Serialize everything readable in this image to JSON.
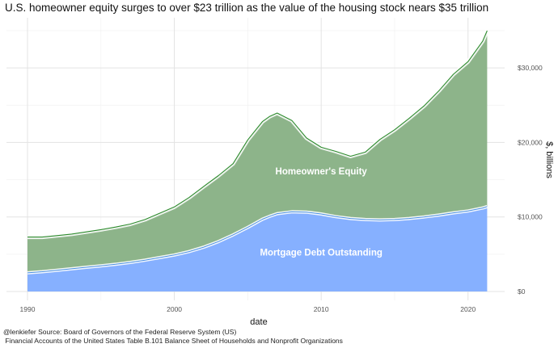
{
  "chart_data": {
    "type": "area",
    "title": "U.S. homeowner equity surges to over $23 trillion as the value of the housing stock nears $35 trillion",
    "xlabel": "date",
    "ylabel": "$, billions",
    "xlim": [
      1990,
      2021.5
    ],
    "ylim": [
      0,
      35000
    ],
    "x_ticks": [
      1990,
      2000,
      2010,
      2020
    ],
    "y_ticks": [
      0,
      10000,
      20000,
      30000
    ],
    "y_tick_labels": [
      "$0",
      "$10,000",
      "$20,000",
      "$30,000"
    ],
    "grid": true,
    "colors": {
      "equity": "#8db48a",
      "equity_line": "#2e8b2e",
      "debt": "#86b0ff",
      "debt_line": "#4a90e2",
      "glow": "#ffffff"
    },
    "x": [
      1990,
      1991,
      1992,
      1993,
      1994,
      1995,
      1996,
      1997,
      1998,
      1999,
      2000,
      2001,
      2002,
      2003,
      2004,
      2005,
      2006,
      2006.5,
      2007,
      2008,
      2009,
      2010,
      2011,
      2012,
      2013,
      2014,
      2015,
      2016,
      2017,
      2018,
      2019,
      2020,
      2021,
      2021.3
    ],
    "series": [
      {
        "name": "Mortgage Debt Outstanding",
        "values": [
          2500,
          2650,
          2850,
          3050,
          3250,
          3450,
          3650,
          3900,
          4200,
          4550,
          4900,
          5350,
          5950,
          6700,
          7600,
          8600,
          9700,
          10100,
          10450,
          10700,
          10650,
          10400,
          10050,
          9800,
          9650,
          9600,
          9650,
          9800,
          10000,
          10250,
          10550,
          10800,
          11200,
          11400
        ]
      },
      {
        "name": "Homeowner's Equity",
        "values": [
          4800,
          4650,
          4650,
          4650,
          4750,
          4850,
          5000,
          5150,
          5450,
          5950,
          6450,
          7250,
          8150,
          8850,
          9550,
          11750,
          13100,
          13400,
          13500,
          12250,
          9950,
          8950,
          8750,
          8350,
          9050,
          10800,
          12050,
          13450,
          14900,
          16650,
          18600,
          20050,
          22400,
          23600
        ]
      }
    ],
    "area_labels": {
      "equity": "Homeowner's Equity",
      "debt": "Mortgage Debt Outstanding"
    },
    "label_positions": {
      "equity": {
        "x": 2010,
        "y": 15700
      },
      "debt": {
        "x": 2010,
        "y": 4800
      }
    }
  },
  "caption": {
    "line1": "@lenkiefer Source: Board of Governors of the Federal Reserve System (US)",
    "line2": " Financial Accounts of the United States Table B.101 Balance Sheet of Households and Nonprofit Organizations"
  }
}
